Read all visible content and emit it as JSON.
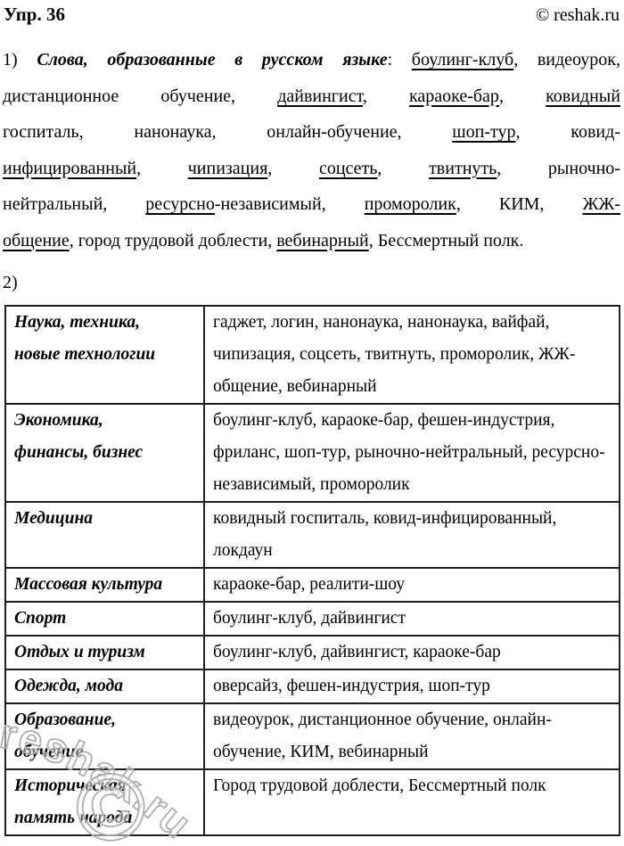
{
  "header": {
    "exercise": "Упр. 36",
    "site": "© reshak.ru"
  },
  "part1": {
    "lines": [
      {
        "justify": true,
        "chunks": [
          [
            {
              "t": "1)"
            }
          ],
          [
            {
              "t": "Слова,",
              "bi": true
            }
          ],
          [
            {
              "t": "образованные",
              "bi": true
            }
          ],
          [
            {
              "t": "в",
              "bi": true
            }
          ],
          [
            {
              "t": "русском",
              "bi": true
            }
          ],
          [
            {
              "t": "языке",
              "bi": true
            },
            {
              "t": ":"
            }
          ],
          [
            {
              "t": "боулинг-клуб",
              "u": true
            },
            {
              "t": ","
            }
          ],
          [
            {
              "t": "видеоурок,"
            }
          ]
        ]
      },
      {
        "justify": true,
        "chunks": [
          [
            {
              "t": "дистанционное"
            }
          ],
          [
            {
              "t": "обучение,"
            }
          ],
          [
            {
              "t": "дайвингист",
              "u": true
            },
            {
              "t": ","
            }
          ],
          [
            {
              "t": "караоке-бар",
              "u": true
            },
            {
              "t": ","
            }
          ],
          [
            {
              "t": "ковидный",
              "u": true
            }
          ]
        ]
      },
      {
        "justify": true,
        "chunks": [
          [
            {
              "t": "госпиталь,"
            }
          ],
          [
            {
              "t": "нанонаука,"
            }
          ],
          [
            {
              "t": "онлайн-обучение,"
            }
          ],
          [
            {
              "t": "шоп-тур",
              "u": true
            },
            {
              "t": ","
            }
          ],
          [
            {
              "t": "ковид-"
            }
          ]
        ]
      },
      {
        "justify": true,
        "chunks": [
          [
            {
              "t": "инфицированный",
              "u": true
            },
            {
              "t": ","
            }
          ],
          [
            {
              "t": "чипизация",
              "u": true
            },
            {
              "t": ","
            }
          ],
          [
            {
              "t": "соцсеть",
              "u": true
            },
            {
              "t": ","
            }
          ],
          [
            {
              "t": "твитнуть",
              "u": true
            },
            {
              "t": ","
            }
          ],
          [
            {
              "t": "рыночно-"
            }
          ]
        ]
      },
      {
        "justify": true,
        "chunks": [
          [
            {
              "t": "нейтральный,"
            }
          ],
          [
            {
              "t": "ресурсно",
              "u": true
            },
            {
              "t": "-независимый,"
            }
          ],
          [
            {
              "t": "проморолик",
              "u": true
            },
            {
              "t": ","
            }
          ],
          [
            {
              "t": "КИМ,"
            }
          ],
          [
            {
              "t": "ЖЖ-",
              "u": true
            }
          ]
        ]
      },
      {
        "justify": false,
        "chunks": [
          [
            {
              "t": "общение",
              "u": true
            },
            {
              "t": ", город трудовой доблести, "
            },
            {
              "t": "вебинарный",
              "u": true
            },
            {
              "t": ", Бессмертный полк."
            }
          ]
        ]
      }
    ]
  },
  "part2": {
    "label": "2)"
  },
  "table": {
    "rows": [
      {
        "label": "Наука, техника,\nновые технологии",
        "words": "гаджет, логин, нанонаука, нанонаука, вайфай, чипизация, соцсеть, твитнуть, проморолик, ЖЖ-общение, вебинарный"
      },
      {
        "label": "Экономика,\nфинансы, бизнес",
        "words": "боулинг-клуб, караоке-бар, фешен-индустрия, фриланс, шоп-тур, рыночно-нейтральный, ресурсно-независимый, проморолик"
      },
      {
        "label": "Медицина",
        "words": "ковидный госпиталь, ковид-инфицированный, локдаун"
      },
      {
        "label": "Массовая культура",
        "words": "караоке-бар, реалити-шоу"
      },
      {
        "label": "Спорт",
        "words": "боулинг-клуб, дайвингист"
      },
      {
        "label": "Отдых и туризм",
        "words": "боулинг-клуб, дайвингист, караоке-бар"
      },
      {
        "label": "Одежда, мода",
        "words": "оверсайз, фешен-индустрия, шоп-тур"
      },
      {
        "label": "Образование,\nобучение",
        "words": "видеоурок, дистанционное обучение, онлайн-обучение, КИМ, вебинарный"
      },
      {
        "label": "Историческая\nпамять народа",
        "words": "Город трудовой доблести, Бессмертный полк"
      }
    ]
  },
  "watermark": {
    "text": "reshak.ru",
    "symbol": "©"
  },
  "colors": {
    "page_bg": "#ffffff",
    "text": "#000000",
    "table_border": "#1f1f1f",
    "wm_outline": "#ababab"
  }
}
